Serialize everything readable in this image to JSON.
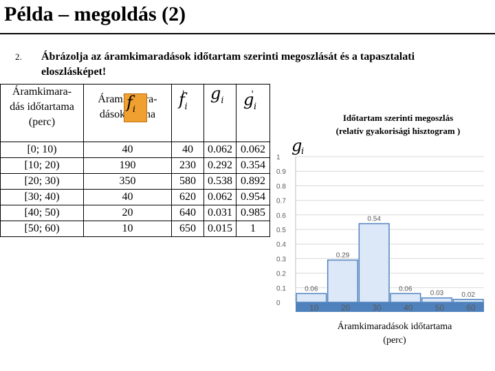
{
  "slide": {
    "title": "Példa – megoldás (2)",
    "task_number": "2.",
    "task_text": "Ábrázolja az áramkimaradások időtartam szerinti megoszlását és a tapasztalati eloszlásképet!"
  },
  "table": {
    "header_col0": [
      "Áramkimara-",
      "dás időtartama",
      "(perc)"
    ],
    "header_col1": [
      "Áramkimara-",
      "dások száma"
    ],
    "rows": [
      {
        "interval": "[0; 10)",
        "count": "40",
        "cum_count": "40",
        "rel": "0.062",
        "cum_rel": "0.062"
      },
      {
        "interval": "[10; 20)",
        "count": "190",
        "cum_count": "230",
        "rel": "0.292",
        "cum_rel": "0.354"
      },
      {
        "interval": "[20; 30)",
        "count": "350",
        "cum_count": "580",
        "rel": "0.538",
        "cum_rel": "0.892"
      },
      {
        "interval": "[30; 40)",
        "count": "40",
        "cum_count": "620",
        "rel": "0.062",
        "cum_rel": "0.954"
      },
      {
        "interval": "[40; 50)",
        "count": "20",
        "cum_count": "640",
        "rel": "0.031",
        "cum_rel": "0.985"
      },
      {
        "interval": "[50; 60)",
        "count": "10",
        "cum_count": "650",
        "rel": "0.015",
        "cum_rel": "1"
      }
    ],
    "symbols": {
      "f": "f",
      "g": "g",
      "subscript": "i",
      "prime": "'"
    },
    "colors": {
      "symbol_highlight": "#f0a030"
    }
  },
  "chart_data": {
    "type": "bar",
    "title": "Időtartam szerinti megoszlás",
    "subtitle": "(relatív gyakorisági hisztogram )",
    "ylabel": "g",
    "ylabel_subscript": "i",
    "xlabel": [
      "Áramkimaradások időtartama",
      "(perc)"
    ],
    "categories": [
      "10",
      "20",
      "30",
      "40",
      "50",
      "60"
    ],
    "values": [
      0.06,
      0.29,
      0.54,
      0.06,
      0.03,
      0.02
    ],
    "data_labels": [
      "0.06",
      "0.29",
      "0.54",
      "0.06",
      "0.03",
      "0.02"
    ],
    "ylim": [
      0,
      1
    ],
    "yticks": [
      "0",
      "0.1",
      "0.2",
      "0.3",
      "0.4",
      "0.5",
      "0.6",
      "0.7",
      "0.8",
      "0.9",
      "1"
    ],
    "grid": true,
    "colors": {
      "bar_fill": "#dce8f8",
      "bar_stroke": "#4f81bd",
      "axis_fill": "#4f81bd",
      "grid": "#d9d9d9",
      "text": "#595959"
    }
  }
}
